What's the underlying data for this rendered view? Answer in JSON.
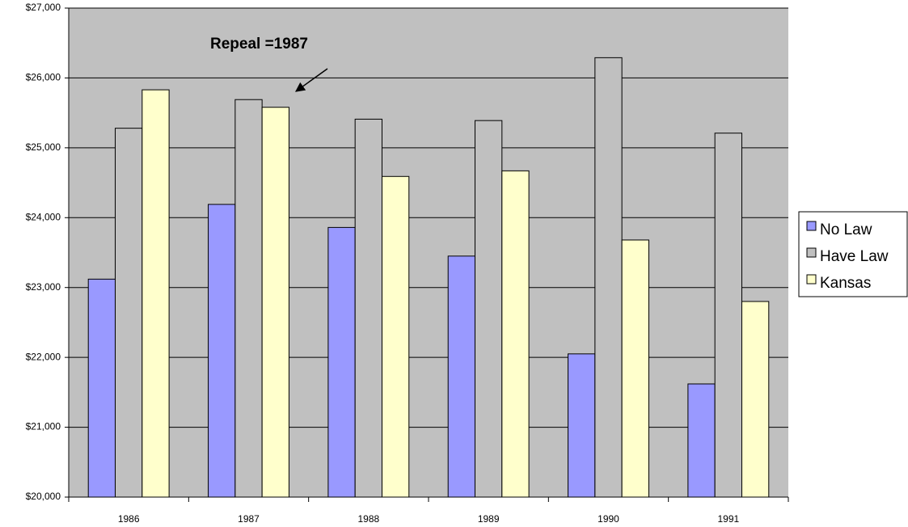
{
  "chart_data": {
    "type": "bar",
    "annotation": "Repeal =1987",
    "categories": [
      "1986",
      "1987",
      "1988",
      "1989",
      "1990",
      "1991"
    ],
    "series": [
      {
        "name": "No Law",
        "color": "#9999ff",
        "values": [
          23120,
          24190,
          23860,
          23450,
          22050,
          21620
        ]
      },
      {
        "name": "Have Law",
        "color": "#c0c0c0",
        "values": [
          25280,
          25690,
          25410,
          25390,
          26290,
          25210
        ]
      },
      {
        "name": "Kansas",
        "color": "#ffffcc",
        "values": [
          25830,
          25580,
          24590,
          24670,
          23680,
          22800
        ]
      }
    ],
    "ylim": [
      20000,
      27000
    ],
    "yticks": [
      {
        "value": 20000,
        "label": "$20,000"
      },
      {
        "value": 21000,
        "label": "$21,000"
      },
      {
        "value": 22000,
        "label": "$22,000"
      },
      {
        "value": 23000,
        "label": "$23,000"
      },
      {
        "value": 24000,
        "label": "$24,000"
      },
      {
        "value": 25000,
        "label": "$25,000"
      },
      {
        "value": 26000,
        "label": "$26,000"
      },
      {
        "value": 27000,
        "label": "$27,000"
      }
    ],
    "grid": true,
    "plot_background": "#c0c0c0",
    "legend": "right"
  }
}
